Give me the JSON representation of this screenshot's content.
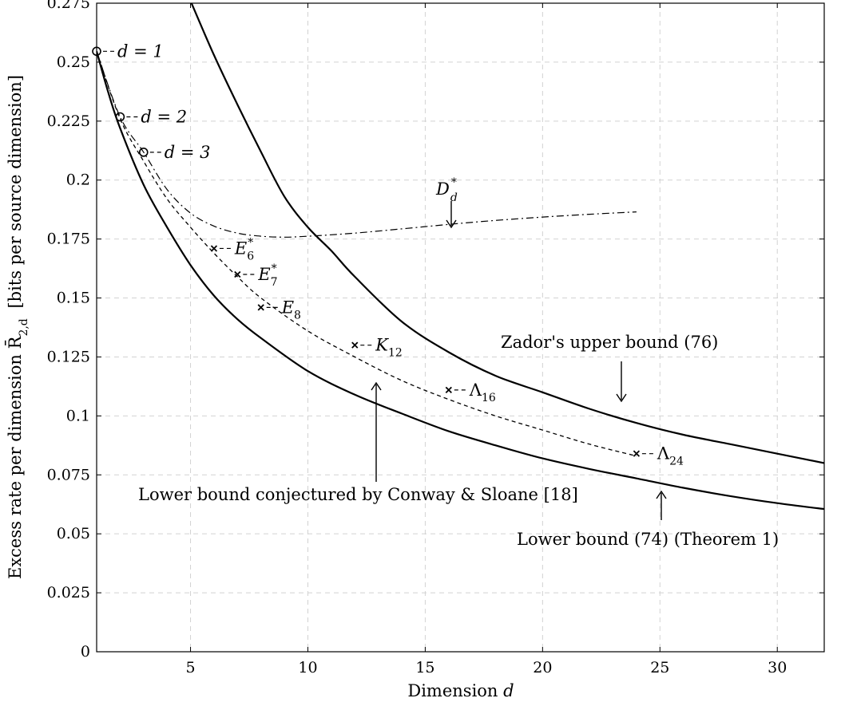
{
  "chart_data": {
    "type": "line",
    "xlabel": "Dimension",
    "xlabel_var": "d",
    "ylabel": "Excess rate per dimension",
    "ylabel_symbol": "R̄",
    "ylabel_sub": "2,d",
    "ylabel_units": "[bits per source dimension]",
    "xlim": [
      1,
      32
    ],
    "ylim": [
      0,
      0.275
    ],
    "x_ticks": [
      5,
      10,
      15,
      20,
      25,
      30
    ],
    "x_tick_labels": [
      "5",
      "10",
      "15",
      "20",
      "25",
      "30"
    ],
    "y_ticks": [
      0,
      0.025,
      0.05,
      0.075,
      0.1,
      0.125,
      0.15,
      0.175,
      0.2,
      0.225,
      0.25,
      0.275
    ],
    "y_tick_labels": [
      "0",
      "0.025",
      "0.05",
      "0.075",
      "0.1",
      "0.125",
      "0.15",
      "0.175",
      "0.2",
      "0.225",
      "0.25",
      "0.275"
    ],
    "grid": true,
    "series": [
      {
        "label": "Zador's upper bound (76)",
        "style": "solid-thick",
        "x": [
          5.0,
          6.0,
          7.0,
          8.0,
          9.0,
          10.0,
          11.0,
          12.0,
          14.0,
          16.0,
          18.0,
          20.0,
          22.0,
          24.0,
          26.0,
          28.0,
          30.0,
          32.0
        ],
        "y": [
          0.276,
          0.253,
          0.232,
          0.212,
          0.193,
          0.18,
          0.17,
          0.159,
          0.14,
          0.127,
          0.117,
          0.11,
          0.103,
          0.097,
          0.092,
          0.088,
          0.084,
          0.08
        ]
      },
      {
        "label": "Lower bound (74) (Theorem 1)",
        "style": "solid-thick",
        "x": [
          1.0,
          1.5,
          2.0,
          3.0,
          4.0,
          5.0,
          6.0,
          7.0,
          8.0,
          10.0,
          12.0,
          14.0,
          16.0,
          18.0,
          20.0,
          22.0,
          24.0,
          26.0,
          28.0,
          30.0,
          32.0
        ],
        "y": [
          0.2546,
          0.237,
          0.222,
          0.198,
          0.18,
          0.164,
          0.151,
          0.141,
          0.133,
          0.119,
          0.109,
          0.101,
          0.0935,
          0.0875,
          0.082,
          0.0775,
          0.0735,
          0.0695,
          0.066,
          0.063,
          0.0605
        ]
      },
      {
        "label": "Lower bound conjectured by Conway & Sloane [18]",
        "style": "dashed",
        "x": [
          1.0,
          2.0,
          3.0,
          4.0,
          5.0,
          6.0,
          7.0,
          8.0,
          10.0,
          12.0,
          14.0,
          16.0,
          18.0,
          20.0,
          22.0,
          24.0
        ],
        "y": [
          0.2546,
          0.226,
          0.208,
          0.192,
          0.18,
          0.169,
          0.159,
          0.15,
          0.136,
          0.125,
          0.115,
          0.107,
          0.1,
          0.094,
          0.088,
          0.083
        ]
      },
      {
        "label": "D",
        "label_sub": "d",
        "label_sup": "*",
        "style": "dashdot",
        "x": [
          1.0,
          2.0,
          3.0,
          4.0,
          5.0,
          6.0,
          7.0,
          8.0,
          9.0,
          10.0,
          12.0,
          14.0,
          16.0,
          18.0,
          20.0,
          22.0,
          24.0
        ],
        "y": [
          0.2546,
          0.2268,
          0.2118,
          0.196,
          0.186,
          0.1805,
          0.1775,
          0.1762,
          0.1758,
          0.1762,
          0.1775,
          0.1793,
          0.1812,
          0.1829,
          0.1843,
          0.1855,
          0.1865
        ]
      }
    ],
    "circle_points": [
      {
        "x": 1,
        "y": 0.2546,
        "label": "d = 1"
      },
      {
        "x": 2,
        "y": 0.2268,
        "label": "d = 2"
      },
      {
        "x": 3,
        "y": 0.2118,
        "label": "d = 3"
      }
    ],
    "lattice_points": [
      {
        "x": 6,
        "y": 0.171,
        "name": "E",
        "sub": "6",
        "sup": "*"
      },
      {
        "x": 7,
        "y": 0.16,
        "name": "E",
        "sub": "7",
        "sup": "*"
      },
      {
        "x": 8,
        "y": 0.146,
        "name": "E",
        "sub": "8",
        "sup": ""
      },
      {
        "x": 12,
        "y": 0.13,
        "name": "K",
        "sub": "12",
        "sup": ""
      },
      {
        "x": 16,
        "y": 0.111,
        "name": "Λ",
        "sub": "16",
        "sup": ""
      },
      {
        "x": 24,
        "y": 0.084,
        "name": "Λ",
        "sub": "24",
        "sup": ""
      }
    ],
    "annotations": {
      "zador": "Zador's upper bound (76)",
      "conway": "Lower bound conjectured by Conway & Sloane [18]",
      "lower": "Lower bound (74) (Theorem 1)"
    }
  }
}
